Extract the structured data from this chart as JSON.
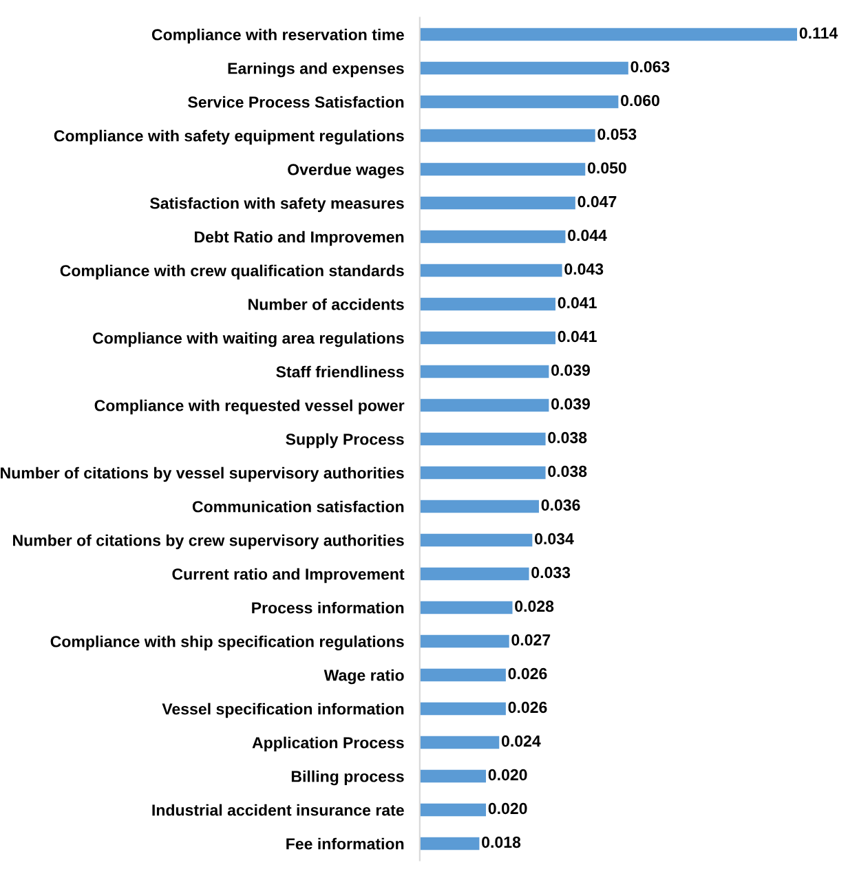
{
  "chart_data": {
    "type": "bar",
    "orientation": "horizontal",
    "color": "#5b9bd5",
    "tick_labels": "y",
    "categories": [
      "Compliance with reservation time",
      "Earnings and expenses",
      "Service Process Satisfaction",
      "Compliance with safety equipment regulations",
      "Overdue wages",
      "Satisfaction with safety measures",
      "Debt Ratio and Improvemen",
      "Compliance with crew qualification standards",
      "Number of accidents",
      "Compliance with waiting area regulations",
      "Staff friendliness",
      "Compliance with requested vessel power",
      "Supply Process",
      "Number of citations by vessel supervisory authorities",
      "Communication satisfaction",
      "Number of citations by crew supervisory authorities",
      "Current ratio and Improvement",
      "Process information",
      "Compliance with ship specification regulations",
      "Wage ratio",
      "Vessel specification information",
      "Application Process",
      "Billing process",
      "Industrial accident insurance rate",
      "Fee information"
    ],
    "values": [
      0.114,
      0.063,
      0.06,
      0.053,
      0.05,
      0.047,
      0.044,
      0.043,
      0.041,
      0.041,
      0.039,
      0.039,
      0.038,
      0.038,
      0.036,
      0.034,
      0.033,
      0.028,
      0.027,
      0.026,
      0.026,
      0.024,
      0.02,
      0.02,
      0.018
    ],
    "value_labels": [
      "0.114",
      "0.063",
      "0.060",
      "0.053",
      "0.050",
      "0.047",
      "0.044",
      "0.043",
      "0.041",
      "0.041",
      "0.039",
      "0.039",
      "0.038",
      "0.038",
      "0.036",
      "0.034",
      "0.033",
      "0.028",
      "0.027",
      "0.026",
      "0.026",
      "0.024",
      "0.020",
      "0.020",
      "0.018"
    ]
  }
}
